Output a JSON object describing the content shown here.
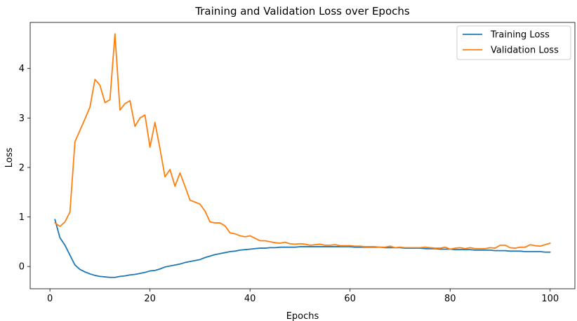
{
  "chart_data": {
    "type": "line",
    "title": "Training and Validation Loss over Epochs",
    "xlabel": "Epochs",
    "ylabel": "Loss",
    "xlim": [
      -3.95,
      104.95
    ],
    "ylim": [
      -0.45,
      4.93
    ],
    "xticks": [
      0,
      20,
      40,
      60,
      80,
      100
    ],
    "xtick_labels": [
      "0",
      "20",
      "40",
      "60",
      "80",
      "100"
    ],
    "yticks": [
      0,
      1,
      2,
      3,
      4
    ],
    "ytick_labels": [
      "0",
      "1",
      "2",
      "3",
      "4"
    ],
    "grid": false,
    "legend_position": "top-right",
    "x": [
      1,
      2,
      3,
      4,
      5,
      6,
      7,
      8,
      9,
      10,
      11,
      12,
      13,
      14,
      15,
      16,
      17,
      18,
      19,
      20,
      21,
      22,
      23,
      24,
      25,
      26,
      27,
      28,
      29,
      30,
      31,
      32,
      33,
      34,
      35,
      36,
      37,
      38,
      39,
      40,
      41,
      42,
      43,
      44,
      45,
      46,
      47,
      48,
      49,
      50,
      51,
      52,
      53,
      54,
      55,
      56,
      57,
      58,
      59,
      60,
      61,
      62,
      63,
      64,
      65,
      66,
      67,
      68,
      69,
      70,
      71,
      72,
      73,
      74,
      75,
      76,
      77,
      78,
      79,
      80,
      81,
      82,
      83,
      84,
      85,
      86,
      87,
      88,
      89,
      90,
      91,
      92,
      93,
      94,
      95,
      96,
      97,
      98,
      99,
      100
    ],
    "series": [
      {
        "name": "Training Loss",
        "color": "#1f77b4",
        "values": [
          0.95,
          0.58,
          0.43,
          0.23,
          0.03,
          -0.06,
          -0.11,
          -0.15,
          -0.18,
          -0.2,
          -0.21,
          -0.22,
          -0.22,
          -0.2,
          -0.19,
          -0.17,
          -0.16,
          -0.14,
          -0.12,
          -0.09,
          -0.08,
          -0.05,
          -0.01,
          0.01,
          0.03,
          0.05,
          0.08,
          0.1,
          0.12,
          0.14,
          0.18,
          0.21,
          0.24,
          0.26,
          0.28,
          0.3,
          0.31,
          0.33,
          0.34,
          0.35,
          0.36,
          0.37,
          0.37,
          0.38,
          0.38,
          0.39,
          0.39,
          0.39,
          0.39,
          0.4,
          0.4,
          0.4,
          0.4,
          0.4,
          0.4,
          0.4,
          0.4,
          0.4,
          0.4,
          0.4,
          0.39,
          0.39,
          0.39,
          0.39,
          0.39,
          0.39,
          0.38,
          0.38,
          0.38,
          0.38,
          0.37,
          0.37,
          0.37,
          0.37,
          0.36,
          0.36,
          0.36,
          0.35,
          0.35,
          0.35,
          0.34,
          0.34,
          0.34,
          0.34,
          0.33,
          0.33,
          0.33,
          0.33,
          0.32,
          0.32,
          0.32,
          0.31,
          0.31,
          0.31,
          0.3,
          0.3,
          0.3,
          0.3,
          0.29,
          0.29
        ]
      },
      {
        "name": "Validation Loss",
        "color": "#ff7f0e",
        "values": [
          0.88,
          0.81,
          0.9,
          1.1,
          2.52,
          2.75,
          2.98,
          3.22,
          3.78,
          3.66,
          3.31,
          3.37,
          4.7,
          3.16,
          3.29,
          3.35,
          2.83,
          3.0,
          3.06,
          2.41,
          2.91,
          2.38,
          1.81,
          1.96,
          1.62,
          1.89,
          1.62,
          1.34,
          1.3,
          1.26,
          1.12,
          0.9,
          0.88,
          0.88,
          0.82,
          0.68,
          0.66,
          0.62,
          0.6,
          0.62,
          0.57,
          0.52,
          0.52,
          0.5,
          0.48,
          0.47,
          0.49,
          0.46,
          0.45,
          0.46,
          0.45,
          0.43,
          0.44,
          0.45,
          0.43,
          0.43,
          0.44,
          0.42,
          0.42,
          0.42,
          0.41,
          0.41,
          0.4,
          0.4,
          0.4,
          0.39,
          0.39,
          0.41,
          0.38,
          0.39,
          0.38,
          0.38,
          0.38,
          0.38,
          0.39,
          0.38,
          0.37,
          0.37,
          0.39,
          0.35,
          0.37,
          0.38,
          0.36,
          0.38,
          0.36,
          0.36,
          0.36,
          0.38,
          0.37,
          0.43,
          0.43,
          0.38,
          0.37,
          0.39,
          0.39,
          0.44,
          0.42,
          0.41,
          0.44,
          0.47
        ]
      }
    ]
  }
}
